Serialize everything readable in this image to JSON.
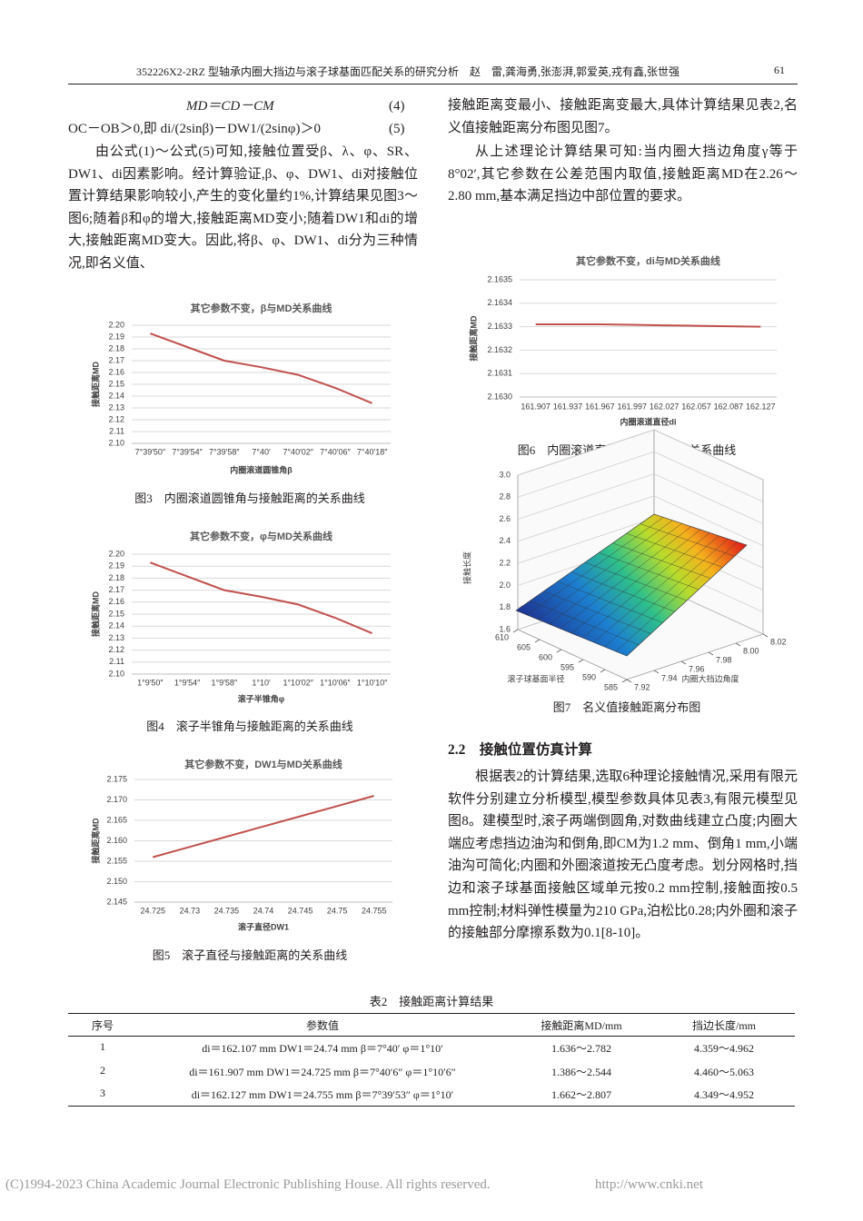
{
  "header": {
    "title": "352226X2-2RZ 型轴承内圈大挡边与滚子球基面匹配关系的研究分析　赵　雷,龚海勇,张澎湃,郭爱英,戎有鑫,张世强",
    "page": "61"
  },
  "left_column": {
    "equations": [
      {
        "text": "MD＝CD－CM",
        "number": "(4)"
      },
      {
        "text": "OC－OB＞0,即 di/(2sinβ)－DW1/(2sinφ)＞0",
        "number": "(5)"
      }
    ],
    "paragraph": "由公式(1)～公式(5)可知,接触位置受β、λ、φ、SR、DW1、di因素影响。经计算验证,β、φ、DW1、di对接触位置计算结果影响较小,产生的变化量约1%,计算结果见图3～图6;随着β和φ的增大,接触距离MD变小;随着DW1和di的增大,接触距离MD变大。因此,将β、φ、DW1、di分为三种情况,即名义值、"
  },
  "right_column": {
    "paragraphs": [
      "接触距离变最小、接触距离变最大,具体计算结果见表2,名义值接触距离分布图见图7。",
      "从上述理论计算结果可知:当内圈大挡边角度γ等于8°02′,其它参数在公差范围内取值,接触距离MD在2.26～2.80 mm,基本满足挡边中部位置的要求。"
    ],
    "section_heading": "2.2　接触位置仿真计算",
    "section_paragraph": "根据表2的计算结果,选取6种理论接触情况,采用有限元软件分别建立分析模型,模型参数具体见表3,有限元模型见图8。建模型时,滚子两端倒圆角,对数曲线建立凸度;内圈大端应考虑挡边油沟和倒角,即CM为1.2 mm、倒角1 mm,小端油沟可简化;内圈和外圈滚道按无凸度考虑。划分网格时,挡边和滚子球基面接触区域单元按0.2 mm控制,接触面按0.5 mm控制;材料弹性模量为210 GPa,泊松比0.28;内外圈和滚子的接触部分摩擦系数为0.1[8-10]。"
  },
  "figures": [
    {
      "caption": "图3　内圈滚道圆锥角与接触距离的关系曲线",
      "chart_data": {
        "type": "line",
        "title": "其它参数不变，β与MD关系曲线",
        "y_label": "接触距离MD",
        "x_label": "内圈滚道圆锥角β",
        "categories": [
          "7°39′50″",
          "7°39′54″",
          "7°39′58″",
          "7°40′",
          "7°40′02″",
          "7°40′06″",
          "7°40′18″"
        ],
        "series": [
          {
            "color": "#c0504d",
            "values": [
              2.193,
              2.1815,
              2.17,
              2.1645,
              2.158,
              2.147,
              2.134
            ]
          }
        ],
        "ylim": [
          2.1,
          2.2
        ],
        "yticks": [
          {
            "value": 2.2,
            "label": "2.20"
          },
          2.19,
          2.18,
          2.17,
          2.16,
          2.15,
          2.14,
          2.13,
          2.12,
          2.11,
          {
            "value": 2.1,
            "label": "2.10"
          }
        ],
        "grid": true
      }
    },
    {
      "caption": "图4　滚子半锥角与接触距离的关系曲线",
      "chart_data": {
        "type": "line",
        "title": "其它参数不变，φ与MD关系曲线",
        "y_label": "接触距离MD",
        "x_label": "滚子半锥角φ",
        "categories": [
          "1°9′50″",
          "1°9′54″",
          "1°9′58″",
          "1°10′",
          "1°10′02″",
          "1°10′06″",
          "1°10′10″"
        ],
        "series": [
          {
            "color": "#c0504d",
            "values": [
              2.193,
              2.1815,
              2.17,
              2.1645,
              2.158,
              2.147,
              2.134
            ]
          }
        ],
        "ylim": [
          2.1,
          2.2
        ],
        "yticks": [
          {
            "value": 2.2,
            "label": "2.20"
          },
          2.19,
          2.18,
          2.17,
          2.16,
          2.15,
          2.14,
          2.13,
          2.12,
          2.11,
          {
            "value": 2.1,
            "label": "2.10"
          }
        ],
        "grid": true
      }
    },
    {
      "caption": "图5　滚子直径与接触距离的关系曲线",
      "chart_data": {
        "type": "line",
        "title": "其它参数不变，DW1与MD关系曲线",
        "y_label": "接触距离MD",
        "x_label": "滚子直径DW1",
        "categories": [
          "24.725",
          "24.73",
          "24.735",
          "24.74",
          "24.745",
          "24.75",
          "24.755"
        ],
        "series": [
          {
            "color": "#c0504d",
            "values": [
              2.156,
              2.1585,
              2.161,
              2.1635,
              2.166,
              2.1685,
              2.171
            ]
          }
        ],
        "ylim": [
          2.145,
          2.175
        ],
        "yticks": [
          2.175,
          {
            "value": 2.17,
            "label": "2.170"
          },
          2.165,
          {
            "value": 2.16,
            "label": "2.160"
          },
          2.155,
          {
            "value": 2.15,
            "label": "2.150"
          },
          2.145
        ],
        "grid": true
      }
    },
    {
      "caption": "图6　内圈滚道直径与接触距离的关系曲线",
      "chart_data": {
        "type": "line",
        "title": "其它参数不变，di与MD关系曲线",
        "y_label": "接触距离MD",
        "x_label": "内圈滚道直径di",
        "categories": [
          "161.907",
          "161.937",
          "161.967",
          "161.997",
          "162.027",
          "162.057",
          "162.087",
          "162.127"
        ],
        "series": [
          {
            "color": "#c0504d",
            "values": [
              2.16331,
              2.16331,
              2.16331,
              2.163308,
              2.163306,
              2.163304,
              2.163302,
              2.1633
            ]
          }
        ],
        "ylim": [
          2.163,
          2.1635
        ],
        "yticks": [
          2.1635,
          2.1634,
          2.1633,
          2.1632,
          2.1631,
          {
            "value": 2.163,
            "label": "2.1630"
          }
        ],
        "grid": true
      }
    },
    {
      "caption": "图7　名义值接触距离分布图",
      "chart_data": {
        "type": "surface",
        "z_label": "接触长度",
        "x_label": "滚子球基面半径",
        "y_label": "内圈大挡边角度",
        "xlim": [
          585,
          610
        ],
        "xticks": [
          585,
          590,
          595,
          600,
          605,
          610
        ],
        "ylim": [
          7.92,
          8.02
        ],
        "yticks": [
          7.92,
          7.94,
          7.96,
          7.98,
          {
            "value": 8,
            "label": "8.00"
          },
          8.02
        ],
        "zlim": [
          1.6,
          3.0
        ],
        "zticks": [
          1.6,
          1.8,
          {
            "value": 2,
            "label": "2.0"
          },
          2.2,
          2.4,
          2.6,
          2.8,
          {
            "value": 3,
            "label": "3.0"
          }
        ]
      }
    }
  ],
  "table": {
    "caption": "表2　接触距离计算结果",
    "header": [
      "序号",
      "参数值",
      "接触距离MD/mm",
      "挡边长度/mm"
    ],
    "rows": [
      [
        "1",
        "di＝162.107 mm DW1＝24.74 mm β＝7°40′ φ＝1°10′",
        "1.636～2.782",
        "4.359～4.962"
      ],
      [
        "2",
        "di＝161.907 mm DW1＝24.725 mm β＝7°40′6″ φ＝1°10′6″",
        "1.386～2.544",
        "4.460～5.063"
      ],
      [
        "3",
        "di＝162.127 mm DW1＝24.755 mm β＝7°39′53″ φ＝1°10′",
        "1.662～2.807",
        "4.349～4.952"
      ]
    ]
  },
  "footer": {
    "copyright": "(C)1994-2023 China Academic Journal Electronic Publishing House. All rights reserved.",
    "url": "http://www.cnki.net"
  }
}
